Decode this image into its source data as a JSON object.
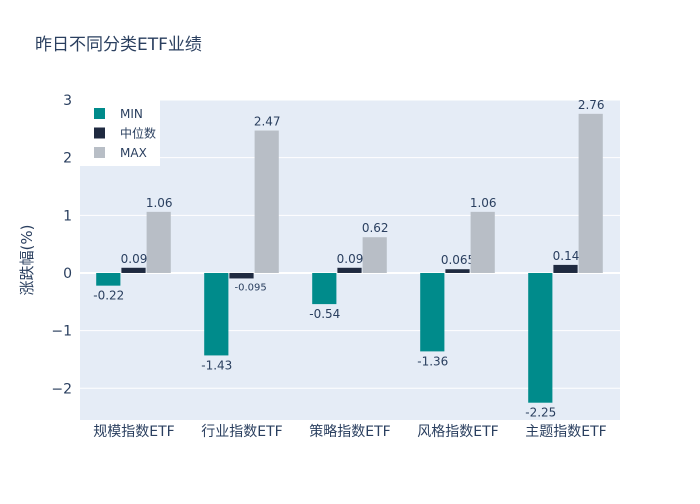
{
  "chart_data": {
    "type": "bar",
    "title": "昨日不同分类ETF业绩",
    "xlabel": "",
    "ylabel": "涨跌幅(%)",
    "ylim": [
      -2.55,
      3.0
    ],
    "yticks": [
      -2,
      -1,
      0,
      1,
      2,
      3
    ],
    "ytick_labels": [
      "−2",
      "−1",
      "0",
      "1",
      "2",
      "3"
    ],
    "grid": true,
    "legend_position": "top-left",
    "categories": [
      "规模指数ETF",
      "行业指数ETF",
      "策略指数ETF",
      "风格指数ETF",
      "主题指数ETF"
    ],
    "series": [
      {
        "name": "MIN",
        "color": "#008b8b",
        "values": [
          -0.22,
          -1.43,
          -0.54,
          -1.36,
          -2.25
        ],
        "labels": [
          "-0.22",
          "-1.43",
          "-0.54",
          "-1.36",
          "-2.25"
        ]
      },
      {
        "name": "中位数",
        "color": "#1f2a40",
        "values": [
          0.09,
          -0.095,
          0.09,
          0.065,
          0.14
        ],
        "labels": [
          "0.09",
          "-0.095",
          "0.09",
          "0.065",
          "0.14"
        ]
      },
      {
        "name": "MAX",
        "color": "#b8bec6",
        "values": [
          1.06,
          2.47,
          0.62,
          1.06,
          2.76
        ],
        "labels": [
          "1.06",
          "2.47",
          "0.62",
          "1.06",
          "2.76"
        ]
      }
    ]
  }
}
